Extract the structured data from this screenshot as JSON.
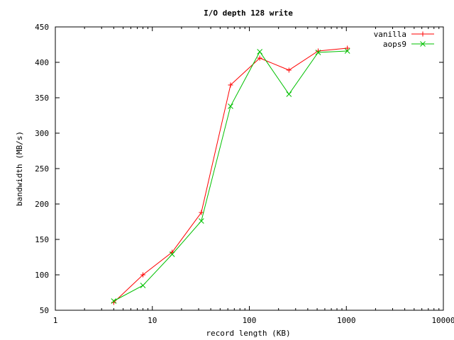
{
  "chart_data": {
    "type": "line",
    "title": "I/O depth 128 write",
    "xlabel": "record length (KB)",
    "ylabel": "bandwidth (MB/s)",
    "x_scale": "log",
    "xlim": [
      1,
      10000
    ],
    "ylim": [
      50,
      450
    ],
    "x_ticks": [
      1,
      10,
      100,
      1000,
      10000
    ],
    "x_tick_labels": [
      "1",
      "10",
      "100",
      "1000",
      "10000"
    ],
    "y_ticks": [
      50,
      100,
      150,
      200,
      250,
      300,
      350,
      400,
      450
    ],
    "y_tick_labels": [
      "50",
      "100",
      "150",
      "200",
      "250",
      "300",
      "350",
      "400",
      "450"
    ],
    "grid": false,
    "legend_position": "top-right",
    "x": [
      4,
      8,
      16,
      32,
      64,
      128,
      256,
      512,
      1024
    ],
    "series": [
      {
        "name": "vanilla",
        "color": "#ff0000",
        "marker": "plus",
        "values": [
          61,
          100,
          132,
          188,
          368,
          406,
          389,
          416,
          420
        ]
      },
      {
        "name": "aops9",
        "color": "#00c000",
        "marker": "cross",
        "values": [
          63,
          85,
          129,
          176,
          338,
          415,
          355,
          414,
          416
        ]
      }
    ]
  }
}
